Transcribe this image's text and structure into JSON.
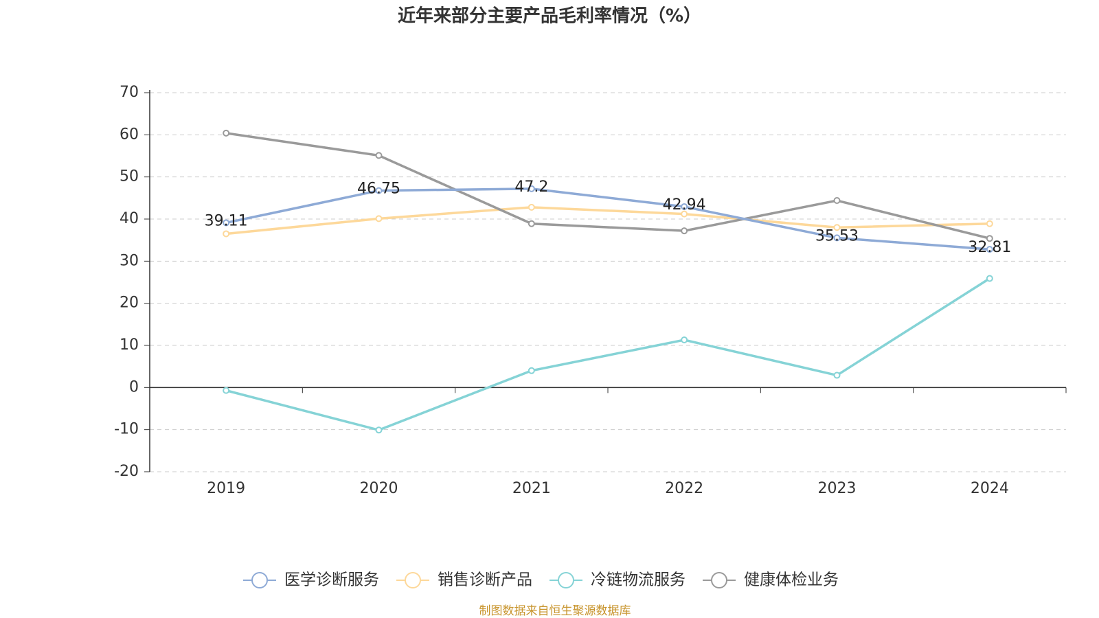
{
  "chart_data": {
    "type": "line",
    "title": "近年来部分主要产品毛利率情况（%）",
    "categories": [
      "2019",
      "2020",
      "2021",
      "2022",
      "2023",
      "2024"
    ],
    "series": [
      {
        "name": "医学诊断服务",
        "color": "#8eaad6",
        "values": [
          39.11,
          46.75,
          47.2,
          42.94,
          35.53,
          32.81
        ],
        "show_labels": true
      },
      {
        "name": "销售诊断产品",
        "color": "#fdd89a",
        "values": [
          36.5,
          40.1,
          42.8,
          41.2,
          38.0,
          38.9
        ]
      },
      {
        "name": "冷链物流服务",
        "color": "#85d3d6",
        "values": [
          -0.7,
          -10.1,
          4.0,
          11.3,
          2.9,
          25.9
        ]
      },
      {
        "name": "健康体检业务",
        "color": "#9a9a9a",
        "values": [
          60.4,
          55.1,
          38.9,
          37.2,
          44.4,
          35.4
        ]
      }
    ],
    "ylim": [
      -20,
      70
    ],
    "yticks": [
      -20,
      -10,
      0,
      10,
      20,
      30,
      40,
      50,
      60,
      70
    ],
    "grid": true,
    "legend": "bottom",
    "source": "制图数据来自恒生聚源数据库"
  }
}
